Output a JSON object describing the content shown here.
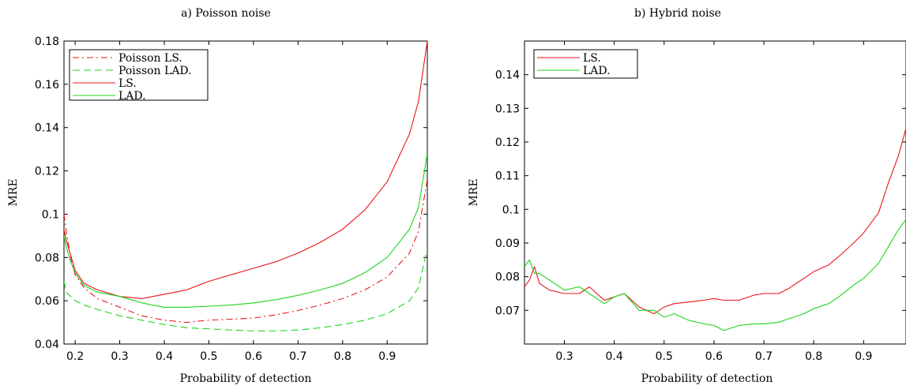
{
  "chart_data": [
    {
      "type": "line",
      "title": "a) Poisson noise",
      "xlabel": "Probability of detection",
      "ylabel": "MRE",
      "xlim": [
        0.175,
        0.99
      ],
      "ylim": [
        0.04,
        0.18
      ],
      "xticks": [
        0.2,
        0.3,
        0.4,
        0.5,
        0.6,
        0.7,
        0.8,
        0.9
      ],
      "xtick_labels": [
        "0.2",
        "0.3",
        "0.4",
        "0.5",
        "0.6",
        "0.7",
        "0.8",
        "0.9"
      ],
      "yticks": [
        0.04,
        0.06,
        0.08,
        0.1,
        0.12,
        0.14,
        0.16,
        0.18
      ],
      "ytick_labels": [
        "0.04",
        "0.06",
        "0.08",
        "0.1",
        "0.12",
        "0.14",
        "0.16",
        "0.18"
      ],
      "grid": false,
      "legend_position": "top-left",
      "series": [
        {
          "name": "Poisson LS.",
          "color": "#e8161b",
          "dash": "dashdot",
          "x": [
            0.175,
            0.18,
            0.19,
            0.2,
            0.22,
            0.25,
            0.3,
            0.35,
            0.4,
            0.45,
            0.5,
            0.55,
            0.6,
            0.65,
            0.7,
            0.75,
            0.8,
            0.85,
            0.9,
            0.95,
            0.97,
            0.99
          ],
          "y": [
            0.1,
            0.092,
            0.08,
            0.072,
            0.066,
            0.061,
            0.057,
            0.053,
            0.051,
            0.05,
            0.051,
            0.0515,
            0.052,
            0.0535,
            0.0555,
            0.058,
            0.061,
            0.065,
            0.071,
            0.082,
            0.092,
            0.116
          ]
        },
        {
          "name": "Poisson LAD.",
          "color": "#1ed41e",
          "dash": "dashed",
          "x": [
            0.175,
            0.18,
            0.19,
            0.2,
            0.22,
            0.25,
            0.3,
            0.35,
            0.4,
            0.45,
            0.5,
            0.55,
            0.6,
            0.65,
            0.7,
            0.75,
            0.8,
            0.85,
            0.9,
            0.95,
            0.97,
            0.99
          ],
          "y": [
            0.069,
            0.064,
            0.062,
            0.06,
            0.058,
            0.056,
            0.053,
            0.051,
            0.049,
            0.0475,
            0.047,
            0.0465,
            0.046,
            0.046,
            0.0465,
            0.0475,
            0.049,
            0.051,
            0.054,
            0.06,
            0.066,
            0.084
          ]
        },
        {
          "name": "LS.",
          "color": "#e8161b",
          "dash": "solid",
          "x": [
            0.175,
            0.18,
            0.19,
            0.2,
            0.22,
            0.25,
            0.3,
            0.35,
            0.4,
            0.45,
            0.5,
            0.55,
            0.6,
            0.65,
            0.7,
            0.75,
            0.8,
            0.85,
            0.9,
            0.95,
            0.97,
            0.99
          ],
          "y": [
            0.093,
            0.088,
            0.081,
            0.074,
            0.068,
            0.065,
            0.062,
            0.061,
            0.063,
            0.065,
            0.069,
            0.072,
            0.075,
            0.078,
            0.082,
            0.087,
            0.093,
            0.102,
            0.115,
            0.137,
            0.152,
            0.18
          ]
        },
        {
          "name": "LAD.",
          "color": "#1ed41e",
          "dash": "solid",
          "x": [
            0.175,
            0.18,
            0.19,
            0.2,
            0.22,
            0.25,
            0.3,
            0.35,
            0.4,
            0.45,
            0.5,
            0.55,
            0.6,
            0.65,
            0.7,
            0.75,
            0.8,
            0.85,
            0.9,
            0.95,
            0.97,
            0.99
          ],
          "y": [
            0.09,
            0.085,
            0.078,
            0.073,
            0.067,
            0.064,
            0.062,
            0.059,
            0.057,
            0.057,
            0.0575,
            0.058,
            0.059,
            0.0605,
            0.0625,
            0.065,
            0.068,
            0.073,
            0.08,
            0.093,
            0.103,
            0.128
          ]
        }
      ]
    },
    {
      "type": "line",
      "title": "b) Hybrid noise",
      "xlabel": "Probability of detection",
      "ylabel": "MRE",
      "xlim": [
        0.22,
        0.985
      ],
      "ylim": [
        0.06,
        0.15
      ],
      "xticks": [
        0.3,
        0.4,
        0.5,
        0.6,
        0.7,
        0.8,
        0.9
      ],
      "xtick_labels": [
        "0.3",
        "0.4",
        "0.5",
        "0.6",
        "0.7",
        "0.8",
        "0.9"
      ],
      "yticks": [
        0.07,
        0.08,
        0.09,
        0.1,
        0.11,
        0.12,
        0.13,
        0.14
      ],
      "ytick_labels": [
        "0.07",
        "0.08",
        "0.09",
        "0.1",
        "0.11",
        "0.12",
        "0.13",
        "0.14"
      ],
      "grid": false,
      "legend_position": "top-left",
      "series": [
        {
          "name": "LS.",
          "color": "#e8161b",
          "dash": "solid",
          "x": [
            0.22,
            0.23,
            0.24,
            0.25,
            0.27,
            0.3,
            0.33,
            0.35,
            0.38,
            0.4,
            0.42,
            0.45,
            0.48,
            0.5,
            0.52,
            0.55,
            0.58,
            0.6,
            0.62,
            0.65,
            0.68,
            0.7,
            0.73,
            0.75,
            0.78,
            0.8,
            0.83,
            0.85,
            0.88,
            0.9,
            0.93,
            0.95,
            0.97,
            0.985
          ],
          "y": [
            0.077,
            0.079,
            0.083,
            0.078,
            0.076,
            0.075,
            0.075,
            0.077,
            0.073,
            0.074,
            0.075,
            0.071,
            0.069,
            0.071,
            0.072,
            0.0725,
            0.073,
            0.0735,
            0.073,
            0.073,
            0.0745,
            0.075,
            0.075,
            0.0765,
            0.0795,
            0.0815,
            0.0835,
            0.086,
            0.09,
            0.093,
            0.099,
            0.108,
            0.116,
            0.124
          ]
        },
        {
          "name": "LAD.",
          "color": "#1ed41e",
          "dash": "solid",
          "x": [
            0.22,
            0.23,
            0.24,
            0.25,
            0.27,
            0.3,
            0.33,
            0.35,
            0.38,
            0.4,
            0.42,
            0.45,
            0.48,
            0.5,
            0.52,
            0.55,
            0.58,
            0.6,
            0.62,
            0.65,
            0.68,
            0.7,
            0.73,
            0.75,
            0.78,
            0.8,
            0.83,
            0.85,
            0.88,
            0.9,
            0.93,
            0.95,
            0.97,
            0.985
          ],
          "y": [
            0.083,
            0.085,
            0.081,
            0.081,
            0.079,
            0.076,
            0.077,
            0.075,
            0.072,
            0.074,
            0.075,
            0.07,
            0.07,
            0.068,
            0.069,
            0.067,
            0.066,
            0.0655,
            0.064,
            0.0655,
            0.066,
            0.066,
            0.0665,
            0.0675,
            0.069,
            0.0705,
            0.072,
            0.074,
            0.0775,
            0.0795,
            0.084,
            0.089,
            0.094,
            0.097
          ]
        }
      ]
    }
  ]
}
